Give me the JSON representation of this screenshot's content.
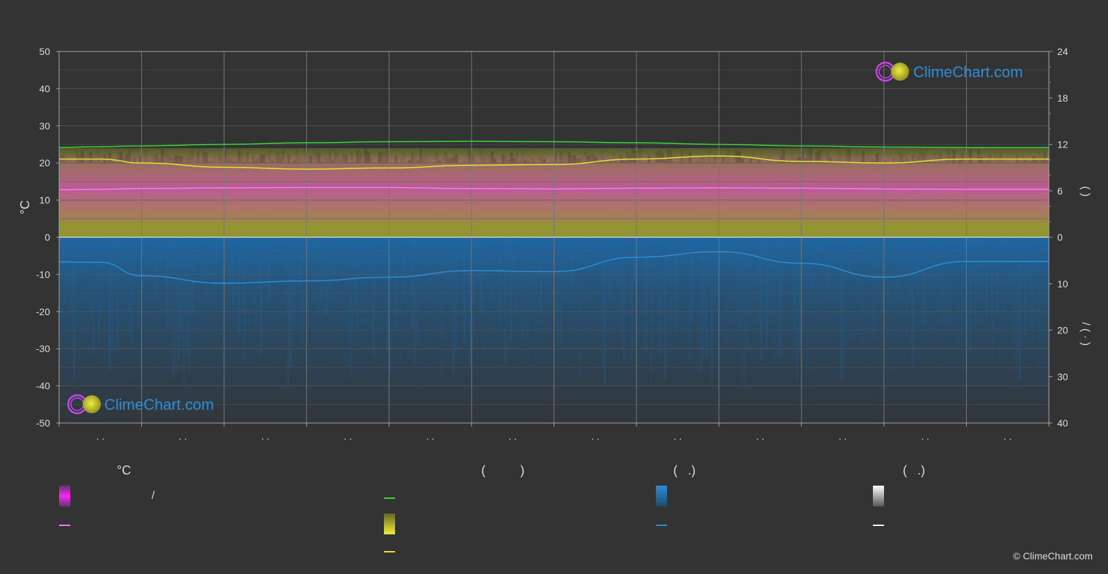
{
  "colors": {
    "background": "#333333",
    "grid": "#5a5a5a",
    "daylight": "#33dd33",
    "sunshine": "#e6e633",
    "temp_mean": "#ff77ff",
    "temp_range": "#dd33dd",
    "sunshine_fill": "#9a9a33",
    "precip_fill": "#1e6aa8",
    "precip_line": "#2a8fd8",
    "snow": "#ffffff"
  },
  "chart_data": {
    "type": "line",
    "x": [
      "Jan",
      "Feb",
      "Mar",
      "Apr",
      "May",
      "Jun",
      "Jul",
      "Aug",
      "Sep",
      "Oct",
      "Nov",
      "Dec"
    ],
    "x_tick_labels": [
      ". .",
      ". .",
      ". .",
      ". .",
      ". .",
      ". .",
      ". .",
      ". .",
      ". .",
      ". .",
      ". .",
      ". ."
    ],
    "left_axis": {
      "label": "°C",
      "range": [
        -50,
        50
      ],
      "ticks": [
        50,
        40,
        30,
        20,
        10,
        0,
        -10,
        -20,
        -30,
        -40,
        -50
      ]
    },
    "right_axis_top": {
      "label": "(  )",
      "range": [
        0,
        24
      ],
      "ticks": [
        24,
        18,
        12,
        6,
        0
      ]
    },
    "right_axis_bottom": {
      "label": "/  (  ·  )",
      "range": [
        0,
        40
      ],
      "ticks": [
        0,
        10,
        20,
        30,
        40
      ]
    },
    "series": [
      {
        "name": "",
        "axis": "hours",
        "points": [
          [
            0,
            11.6
          ],
          [
            0.5,
            11.7
          ],
          [
            1,
            11.8
          ],
          [
            2,
            12.0
          ],
          [
            3,
            12.2
          ],
          [
            4,
            12.35
          ],
          [
            5,
            12.4
          ],
          [
            6,
            12.35
          ],
          [
            7,
            12.2
          ],
          [
            8,
            12.0
          ],
          [
            9,
            11.8
          ],
          [
            10,
            11.65
          ],
          [
            11,
            11.6
          ],
          [
            12,
            11.6
          ]
        ]
      },
      {
        "name": "",
        "axis": "hours",
        "points": [
          [
            0,
            10.1
          ],
          [
            0.5,
            10.1
          ],
          [
            1,
            9.6
          ],
          [
            2,
            9.05
          ],
          [
            3,
            8.8
          ],
          [
            4,
            8.95
          ],
          [
            5,
            9.3
          ],
          [
            6,
            9.4
          ],
          [
            7,
            10.1
          ],
          [
            8,
            10.5
          ],
          [
            9,
            9.8
          ],
          [
            10,
            9.6
          ],
          [
            11,
            10.1
          ],
          [
            12,
            10.1
          ]
        ]
      },
      {
        "name": "",
        "axis": "celsius",
        "points": [
          [
            0,
            12.8
          ],
          [
            0.5,
            12.9
          ],
          [
            1,
            13.1
          ],
          [
            2,
            13.3
          ],
          [
            3,
            13.4
          ],
          [
            4,
            13.4
          ],
          [
            5,
            13.1
          ],
          [
            6,
            13.0
          ],
          [
            7,
            13.2
          ],
          [
            8,
            13.3
          ],
          [
            9,
            13.2
          ],
          [
            10,
            13.0
          ],
          [
            11,
            12.9
          ],
          [
            12,
            12.9
          ]
        ]
      },
      {
        "name": "",
        "axis": "mm",
        "points": [
          [
            0,
            5.3
          ],
          [
            0.5,
            5.4
          ],
          [
            1,
            8.3
          ],
          [
            2,
            9.9
          ],
          [
            3,
            9.4
          ],
          [
            4,
            8.6
          ],
          [
            5,
            7.2
          ],
          [
            6,
            7.4
          ],
          [
            7,
            4.3
          ],
          [
            8,
            3.1
          ],
          [
            9,
            5.6
          ],
          [
            10,
            8.6
          ],
          [
            11,
            5.2
          ],
          [
            12,
            5.2
          ]
        ]
      }
    ]
  },
  "watermark": {
    "text": "ClimeChart.com"
  },
  "legend": {
    "groups": [
      {
        "heading": "°C",
        "items": [
          "/",
          ""
        ]
      },
      {
        "heading": "(          )",
        "items": [
          "",
          "",
          ""
        ]
      },
      {
        "heading": "(   .)",
        "items": [
          "",
          ""
        ]
      },
      {
        "heading": "(   .)",
        "items": [
          "",
          ""
        ]
      }
    ]
  },
  "copyright": "© ClimeChart.com"
}
